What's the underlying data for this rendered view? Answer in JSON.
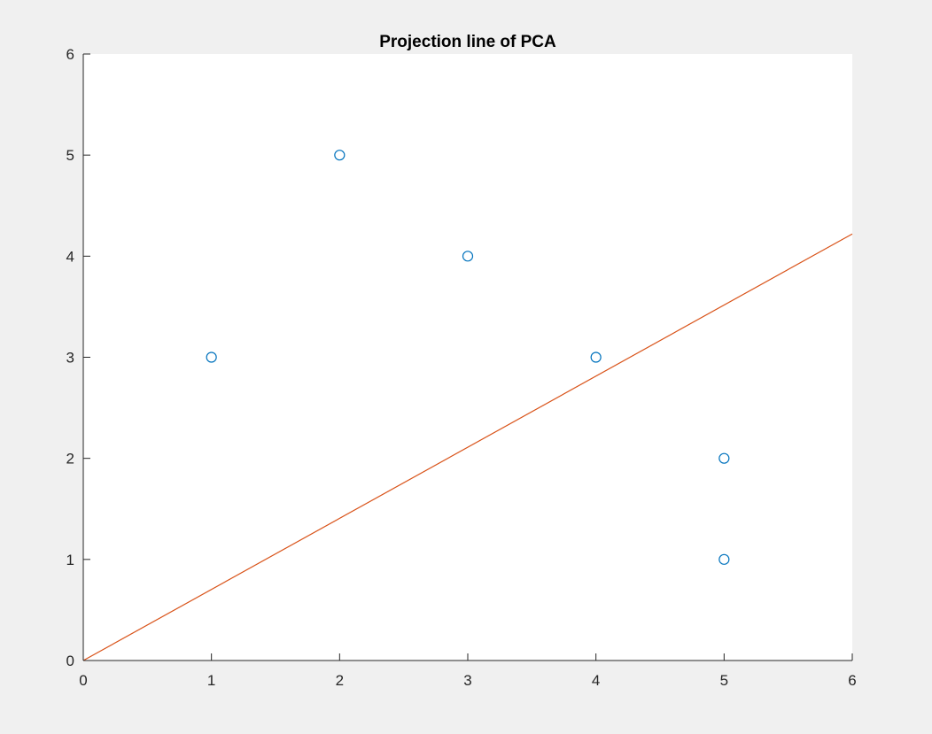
{
  "chart_data": {
    "type": "scatter",
    "title": "Projection line of PCA",
    "xlabel": "",
    "ylabel": "",
    "xlim": [
      0,
      6
    ],
    "ylim": [
      0,
      6
    ],
    "xticks": [
      "0",
      "1",
      "2",
      "3",
      "4",
      "5",
      "6"
    ],
    "yticks": [
      "0",
      "1",
      "2",
      "3",
      "4",
      "5",
      "6"
    ],
    "grid": false,
    "series": [
      {
        "kind": "scatter",
        "marker": "circle-open",
        "color": "#0072bd",
        "x": [
          1,
          2,
          3,
          4,
          5,
          5
        ],
        "y": [
          3,
          5,
          4,
          3,
          2,
          1
        ]
      },
      {
        "kind": "line",
        "color": "#d95319",
        "x": [
          0,
          6
        ],
        "y": [
          0,
          4.22
        ]
      }
    ]
  }
}
